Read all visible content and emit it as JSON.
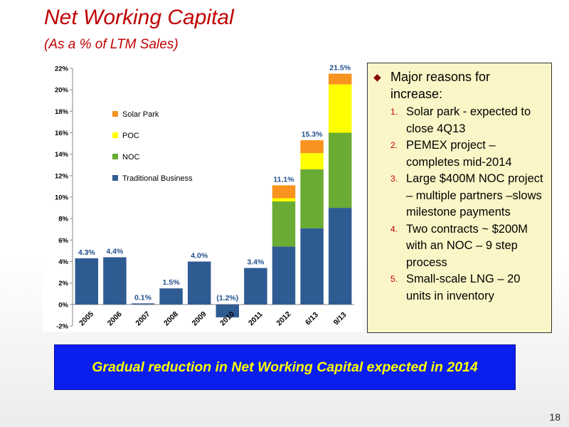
{
  "slide": {
    "title": "Net Working Capital",
    "subtitle": "(As a % of LTM Sales)",
    "page_number": "18",
    "banner": "Gradual reduction in Net Working Capital expected in 2014"
  },
  "reasons": {
    "heading": "Major reasons for increase:",
    "items": [
      {
        "num": "1.",
        "text": "Solar park - expected to close 4Q13"
      },
      {
        "num": "2.",
        "text": "PEMEX project – completes mid-2014"
      },
      {
        "num": "3.",
        "text": "Large $400M NOC project – multiple partners –slows milestone payments"
      },
      {
        "num": "4.",
        "text": "Two contracts ~ $200M with an NOC – 9 step process"
      },
      {
        "num": "5.",
        "text": "Small-scale LNG – 20 units in inventory"
      }
    ]
  },
  "colors": {
    "title": "#c00000",
    "traditional": "#2f5b93",
    "noc": "#6aab33",
    "poc": "#ffff00",
    "solar": "#f7931e",
    "label": "#1f4e8c",
    "banner_bg": "#0a1ef0",
    "banner_text": "#ffff00",
    "box_bg": "#fbf6c7"
  },
  "chart_data": {
    "type": "bar",
    "stacked": true,
    "categories": [
      "2005",
      "2006",
      "2007",
      "2008",
      "2009",
      "2010",
      "2011",
      "2012",
      "6/13",
      "9/13"
    ],
    "series": [
      {
        "name": "Traditional Business",
        "color": "#2f5b93",
        "values": [
          4.3,
          4.4,
          0.1,
          1.5,
          4.0,
          -1.2,
          3.4,
          5.4,
          7.1,
          9.0
        ]
      },
      {
        "name": "NOC",
        "color": "#6aab33",
        "values": [
          0,
          0,
          0,
          0,
          0,
          0,
          0,
          4.2,
          5.5,
          7.0
        ]
      },
      {
        "name": "POC",
        "color": "#ffff00",
        "values": [
          0,
          0,
          0,
          0,
          0,
          0,
          0,
          0.3,
          1.5,
          4.5
        ]
      },
      {
        "name": "Solar Park",
        "color": "#f7931e",
        "values": [
          0,
          0,
          0,
          0,
          0,
          0,
          0,
          1.2,
          1.2,
          1.0
        ]
      }
    ],
    "totals": [
      "4.3%",
      "4.4%",
      "0.1%",
      "1.5%",
      "4.0%",
      "(1.2%)",
      "3.4%",
      "11.1%",
      "15.3%",
      "21.5%"
    ],
    "ylim": [
      -2,
      22
    ],
    "yticks": [
      -2,
      0,
      2,
      4,
      6,
      8,
      10,
      12,
      14,
      16,
      18,
      20,
      22
    ],
    "ytick_labels": [
      "-2%",
      "0%",
      "2%",
      "4%",
      "6%",
      "8%",
      "10%",
      "12%",
      "14%",
      "16%",
      "18%",
      "20%",
      "22%"
    ],
    "legend": [
      "Solar Park",
      "POC",
      "NOC",
      "Traditional Business"
    ],
    "legend_position": "upper-left",
    "grid": false
  }
}
